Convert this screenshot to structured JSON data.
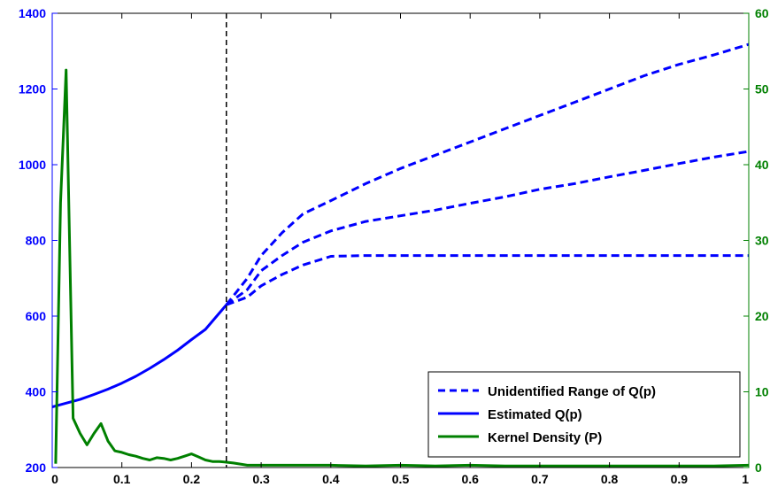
{
  "chart_data": {
    "type": "line",
    "title": "",
    "xlabel": "",
    "ylabel": "",
    "y2label": "",
    "xlim": [
      0,
      1
    ],
    "ylim_left": [
      200,
      1400
    ],
    "ylim_right": [
      0,
      60
    ],
    "x_ticks": [
      "0",
      "0.1",
      "0.2",
      "0.3",
      "0.4",
      "0.5",
      "0.6",
      "0.7",
      "0.8",
      "0.9",
      "1"
    ],
    "y_left_ticks": [
      "200",
      "400",
      "600",
      "800",
      "1000",
      "1200",
      "1400"
    ],
    "y_right_ticks": [
      "0",
      "10",
      "20",
      "30",
      "40",
      "50",
      "60"
    ],
    "grid": false,
    "legend_position": "bottom-right",
    "vertical_marker_x": 0.25,
    "colors": {
      "left_axis": "#0000ff",
      "right_axis": "#008000",
      "bound_lines": "#0000ff",
      "estimate_line": "#0000ff",
      "density_line": "#008000",
      "marker_line": "#000000"
    },
    "legend": [
      {
        "label": "Unidentified Range of Q(p)",
        "style": "dashed",
        "color": "#0000ff"
      },
      {
        "label": "Estimated Q(p)",
        "style": "solid",
        "color": "#0000ff"
      },
      {
        "label": "Kernel Density (P)",
        "style": "solid",
        "color": "#008000"
      }
    ],
    "series": [
      {
        "name": "Estimated Q(p)",
        "axis": "left",
        "style": "solid",
        "x": [
          0,
          0.02,
          0.04,
          0.06,
          0.08,
          0.1,
          0.12,
          0.14,
          0.16,
          0.18,
          0.2,
          0.22,
          0.25
        ],
        "y": [
          360,
          370,
          380,
          393,
          407,
          423,
          441,
          462,
          485,
          510,
          538,
          565,
          630
        ]
      },
      {
        "name": "Unidentified Range of Q(p)",
        "axis": "left",
        "style": "dashed",
        "x": [
          0.25,
          0.28,
          0.3,
          0.33,
          0.36,
          0.4,
          0.45,
          0.5,
          0.55,
          0.6,
          0.65,
          0.7,
          0.75,
          0.8,
          0.85,
          0.9,
          0.95,
          1.0
        ],
        "y": [
          630,
          700,
          760,
          820,
          870,
          905,
          950,
          990,
          1025,
          1060,
          1095,
          1130,
          1165,
          1200,
          1235,
          1265,
          1290,
          1318
        ]
      },
      {
        "name": "Unidentified Range of Q(p)",
        "axis": "left",
        "style": "dashed",
        "x": [
          0.25,
          0.28,
          0.3,
          0.33,
          0.36,
          0.4,
          0.45,
          0.5,
          0.55,
          0.6,
          0.65,
          0.7,
          0.75,
          0.8,
          0.85,
          0.9,
          0.95,
          1.0
        ],
        "y": [
          630,
          670,
          720,
          760,
          795,
          825,
          850,
          865,
          880,
          898,
          915,
          935,
          950,
          968,
          985,
          1003,
          1020,
          1035
        ]
      },
      {
        "name": "Unidentified Range of Q(p)",
        "axis": "left",
        "style": "dashed",
        "x": [
          0.25,
          0.28,
          0.3,
          0.33,
          0.36,
          0.4,
          0.45,
          0.5,
          0.6,
          0.7,
          0.8,
          0.9,
          1.0
        ],
        "y": [
          630,
          650,
          680,
          710,
          735,
          758,
          760,
          760,
          760,
          760,
          760,
          760,
          760
        ]
      },
      {
        "name": "Kernel Density (P)",
        "axis": "right",
        "style": "solid",
        "x": [
          0.005,
          0.012,
          0.02,
          0.03,
          0.04,
          0.05,
          0.06,
          0.07,
          0.08,
          0.09,
          0.1,
          0.11,
          0.12,
          0.13,
          0.14,
          0.15,
          0.16,
          0.17,
          0.18,
          0.19,
          0.2,
          0.21,
          0.22,
          0.23,
          0.24,
          0.25,
          0.26,
          0.28,
          0.3,
          0.35,
          0.4,
          0.45,
          0.5,
          0.55,
          0.6,
          0.65,
          0.7,
          0.75,
          0.8,
          0.85,
          0.9,
          0.95,
          1.0
        ],
        "y": [
          0.5,
          35,
          52.5,
          6.5,
          4.5,
          3,
          4.5,
          5.8,
          3.5,
          2.2,
          2,
          1.7,
          1.5,
          1.2,
          1,
          1.3,
          1.2,
          1,
          1.2,
          1.5,
          1.8,
          1.4,
          1,
          0.8,
          0.8,
          0.7,
          0.6,
          0.3,
          0.3,
          0.3,
          0.3,
          0.2,
          0.3,
          0.2,
          0.3,
          0.2,
          0.2,
          0.2,
          0.2,
          0.2,
          0.2,
          0.2,
          0.3
        ]
      }
    ]
  }
}
